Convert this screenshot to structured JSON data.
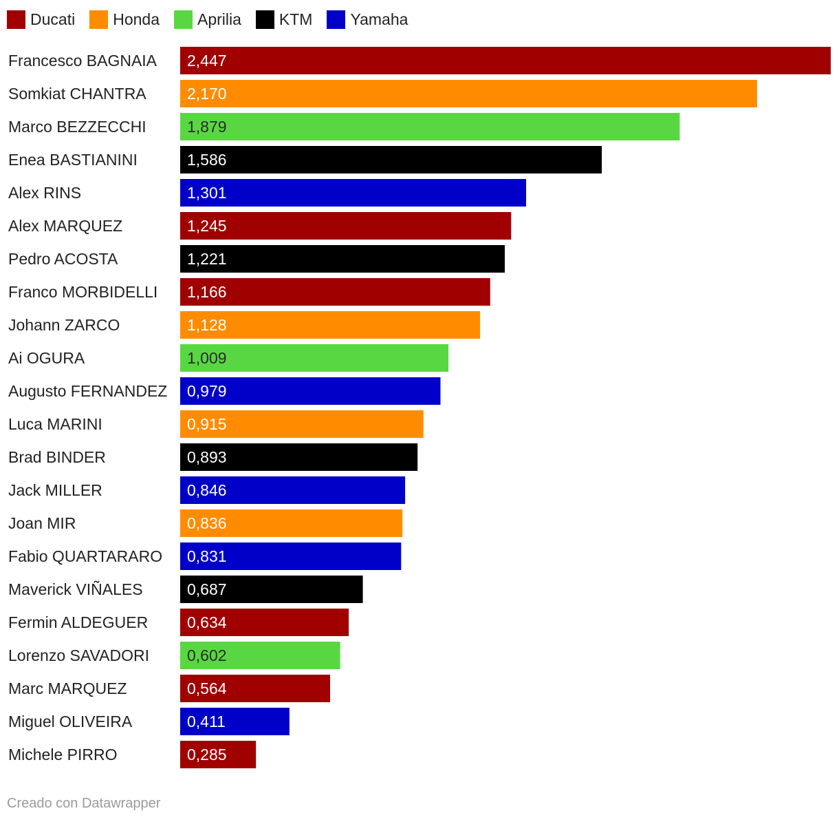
{
  "legend": [
    {
      "name": "Ducati",
      "color": "#a00000"
    },
    {
      "name": "Honda",
      "color": "#ff8c00"
    },
    {
      "name": "Aprilia",
      "color": "#59d743"
    },
    {
      "name": "KTM",
      "color": "#000000"
    },
    {
      "name": "Yamaha",
      "color": "#0000c8"
    }
  ],
  "chart_data": {
    "type": "bar",
    "orientation": "horizontal",
    "title": "",
    "xlabel": "",
    "ylabel": "",
    "xlim": [
      0,
      2.447
    ],
    "grid": false,
    "legend_position": "top-left",
    "decimal_separator": ",",
    "categories": [
      "Francesco BAGNAIA",
      "Somkiat CHANTRA",
      "Marco BEZZECCHI",
      "Enea BASTIANINI",
      "Alex RINS",
      "Alex MARQUEZ",
      "Pedro ACOSTA",
      "Franco MORBIDELLI",
      "Johann ZARCO",
      "Ai OGURA",
      "Augusto FERNANDEZ",
      "Luca MARINI",
      "Brad BINDER",
      "Jack MILLER",
      "Joan MIR",
      "Fabio QUARTARARO",
      "Maverick VIÑALES",
      "Fermin ALDEGUER",
      "Lorenzo SAVADORI",
      "Marc MARQUEZ",
      "Miguel OLIVEIRA",
      "Michele PIRRO"
    ],
    "values": [
      2.447,
      2.17,
      1.879,
      1.586,
      1.301,
      1.245,
      1.221,
      1.166,
      1.128,
      1.009,
      0.979,
      0.915,
      0.893,
      0.846,
      0.836,
      0.831,
      0.687,
      0.634,
      0.602,
      0.564,
      0.411,
      0.285
    ],
    "value_labels": [
      "2,447",
      "2,170",
      "1,879",
      "1,586",
      "1,301",
      "1,245",
      "1,221",
      "1,166",
      "1,128",
      "1,009",
      "0,979",
      "0,915",
      "0,893",
      "0,846",
      "0,836",
      "0,831",
      "0,687",
      "0,634",
      "0,602",
      "0,564",
      "0,411",
      "0,285"
    ],
    "manufacturer": [
      "Ducati",
      "Honda",
      "Aprilia",
      "KTM",
      "Yamaha",
      "Ducati",
      "KTM",
      "Ducati",
      "Honda",
      "Aprilia",
      "Yamaha",
      "Honda",
      "KTM",
      "Yamaha",
      "Honda",
      "Yamaha",
      "KTM",
      "Ducati",
      "Aprilia",
      "Ducati",
      "Yamaha",
      "Ducati"
    ]
  },
  "credit": "Creado con Datawrapper"
}
